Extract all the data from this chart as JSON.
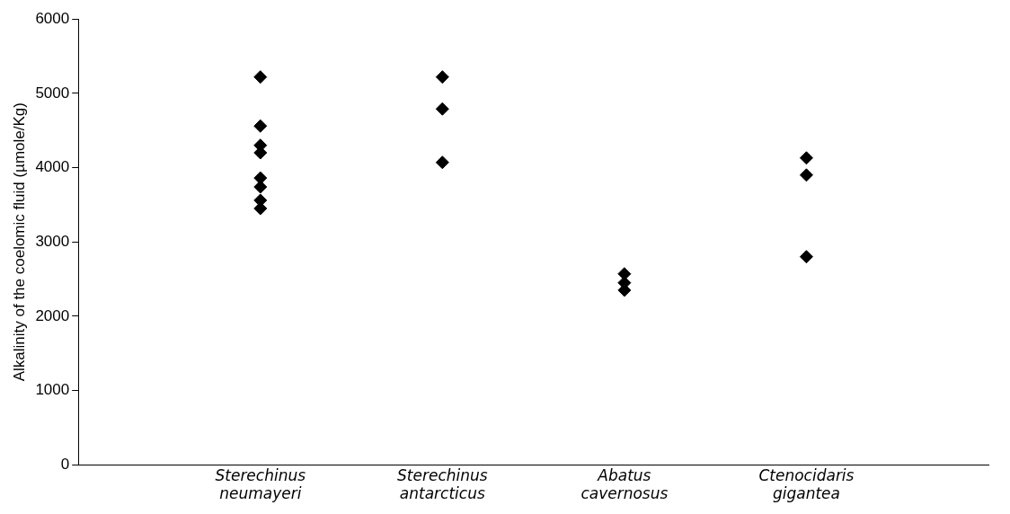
{
  "chart_data": {
    "type": "scatter",
    "ylabel": "Alkalinity of the coelomic fluid (µmole/Kg)",
    "categories": [
      "Sterechinus neumayeri",
      "Sterechinus antarcticus",
      "Abatus cavernosus",
      "Ctenocidaris gigantea"
    ],
    "series": [
      {
        "color": "#000000",
        "x": [
          "Sterechinus neumayeri",
          "Sterechinus neumayeri",
          "Sterechinus neumayeri",
          "Sterechinus neumayeri",
          "Sterechinus neumayeri",
          "Sterechinus neumayeri",
          "Sterechinus neumayeri",
          "Sterechinus neumayeri",
          "Sterechinus antarcticus",
          "Sterechinus antarcticus",
          "Sterechinus antarcticus",
          "Abatus cavernosus",
          "Abatus cavernosus",
          "Abatus cavernosus",
          "Ctenocidaris gigantea",
          "Ctenocidaris gigantea",
          "Ctenocidaris gigantea"
        ],
        "values": [
          5220,
          4560,
          4300,
          4200,
          3860,
          3740,
          3560,
          3450,
          5220,
          4790,
          4070,
          2570,
          2450,
          2350,
          4130,
          3900,
          2800
        ]
      }
    ],
    "ylim": [
      0,
      6000
    ],
    "yticks": [
      0,
      1000,
      2000,
      3000,
      4000,
      5000,
      6000
    ],
    "grid": false,
    "legend": false,
    "marker": "diamond"
  }
}
